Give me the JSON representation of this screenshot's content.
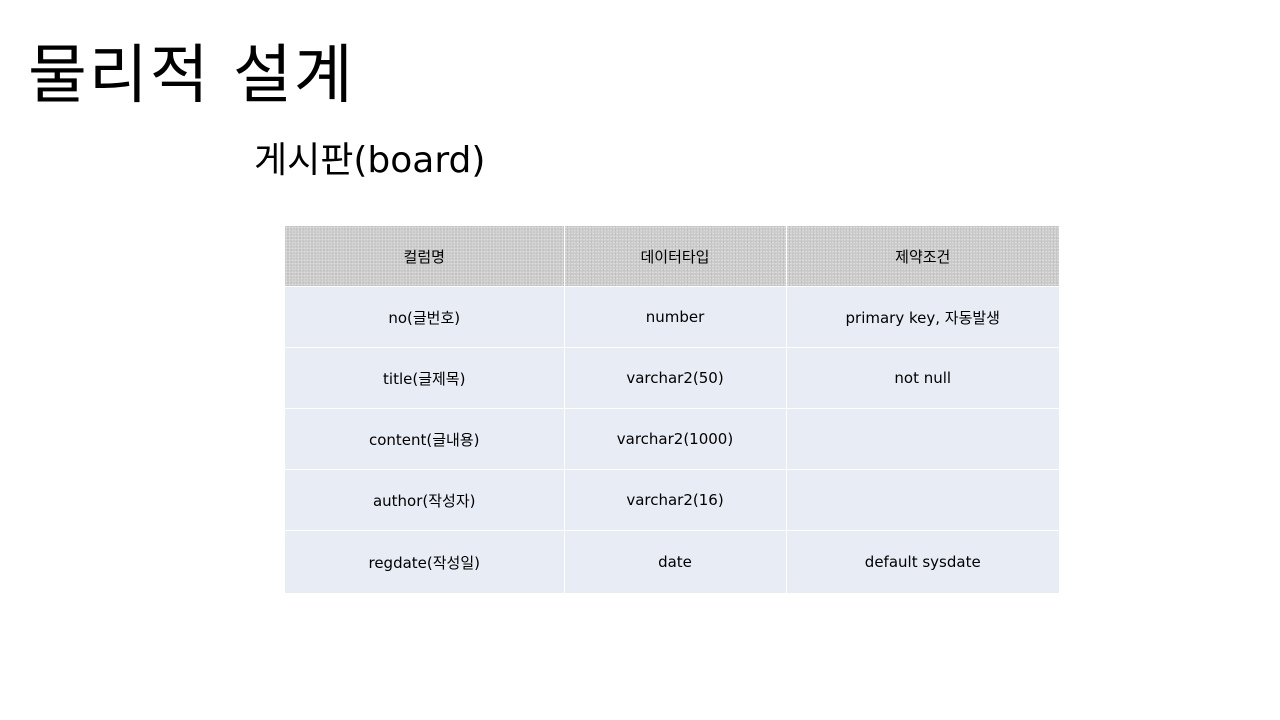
{
  "slide": {
    "title": "물리적 설계",
    "subtitle": "게시판(board)"
  },
  "table": {
    "headers": [
      "컬럼명",
      "데이터타입",
      "제약조건"
    ],
    "rows": [
      [
        "no(글번호)",
        "number",
        "primary key, 자동발생"
      ],
      [
        "title(글제목)",
        "varchar2(50)",
        "not null"
      ],
      [
        "content(글내용)",
        "varchar2(1000)",
        ""
      ],
      [
        "author(작성자)",
        "varchar2(16)",
        ""
      ],
      [
        "regdate(작성일)",
        "date",
        "default sysdate"
      ]
    ]
  },
  "colors": {
    "header_background": "#c9c9c9",
    "row_background": "#e8ecf5",
    "text": "#000000"
  }
}
